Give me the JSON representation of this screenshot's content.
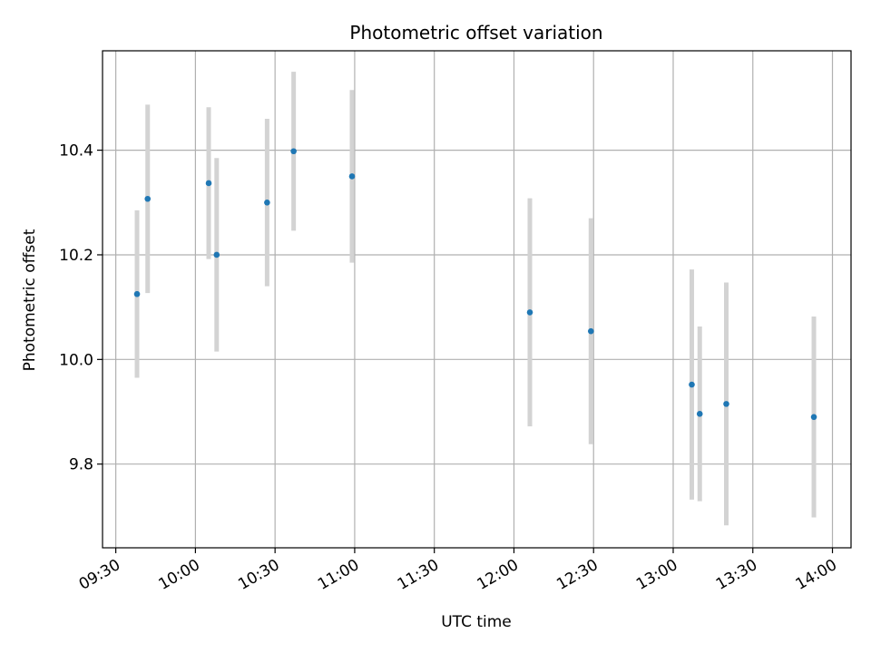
{
  "chart_data": {
    "type": "scatter",
    "title": "Photometric offset variation",
    "xlabel": "UTC time",
    "ylabel": "Photometric offset",
    "x_axis_type": "time",
    "xlim": [
      "09:25",
      "14:07"
    ],
    "ylim": [
      9.64,
      10.59
    ],
    "x_ticks": [
      "09:30",
      "10:00",
      "10:30",
      "11:00",
      "11:30",
      "12:00",
      "12:30",
      "13:00",
      "13:30",
      "14:00"
    ],
    "y_ticks": [
      9.8,
      10.0,
      10.2,
      10.4
    ],
    "y_tick_labels": [
      "9.8",
      "10.0",
      "10.2",
      "10.4"
    ],
    "grid": true,
    "point_color": "#1f77b4",
    "errorbar_color": "#d3d3d3",
    "points": [
      {
        "time": "09:38",
        "y": 10.125,
        "err": 0.16
      },
      {
        "time": "09:42",
        "y": 10.307,
        "err": 0.18
      },
      {
        "time": "10:05",
        "y": 10.337,
        "err": 0.145
      },
      {
        "time": "10:08",
        "y": 10.2,
        "err": 0.185
      },
      {
        "time": "10:27",
        "y": 10.3,
        "err": 0.16
      },
      {
        "time": "10:37",
        "y": 10.398,
        "err": 0.152
      },
      {
        "time": "10:59",
        "y": 10.35,
        "err": 0.165
      },
      {
        "time": "12:06",
        "y": 10.09,
        "err": 0.218
      },
      {
        "time": "12:29",
        "y": 10.054,
        "err": 0.216
      },
      {
        "time": "13:07",
        "y": 9.952,
        "err": 0.22
      },
      {
        "time": "13:10",
        "y": 9.896,
        "err": 0.167
      },
      {
        "time": "13:20",
        "y": 9.915,
        "err": 0.232
      },
      {
        "time": "13:53",
        "y": 9.89,
        "err": 0.192
      }
    ]
  }
}
